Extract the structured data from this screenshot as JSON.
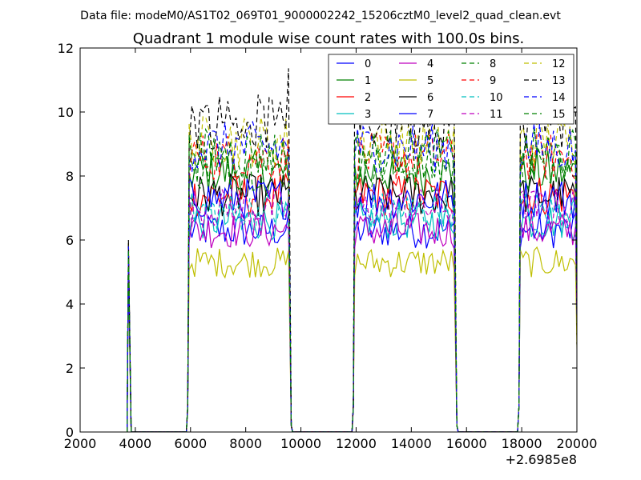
{
  "chart_data": {
    "type": "line",
    "suptitle": "Data file: modeM0/AS1T02_069T01_9000002242_15206cztM0_level2_quad_clean.evt",
    "title": "Quadrant 1 module wise count rates with 100.0s bins.",
    "xlabel": "",
    "ylabel": "",
    "x_offset_label": "+2.6985e8",
    "xlim": [
      2000,
      20000
    ],
    "ylim": [
      0,
      12
    ],
    "xticks": [
      "2000",
      "4000",
      "6000",
      "8000",
      "10000",
      "12000",
      "14000",
      "16000",
      "18000",
      "20000"
    ],
    "yticks": [
      "0",
      "2",
      "4",
      "6",
      "8",
      "10",
      "12"
    ],
    "legend_position": "top-right",
    "segments": [
      {
        "start": 3750,
        "end": 3850
      },
      {
        "start": 5950,
        "end": 9550
      },
      {
        "start": 11950,
        "end": 15550
      },
      {
        "start": 17950,
        "end": 19950
      }
    ],
    "series": [
      {
        "name": "0",
        "color": "#0000ff",
        "dash": "solid",
        "level": 6.3,
        "spike": 5.7
      },
      {
        "name": "1",
        "color": "#008000",
        "dash": "solid",
        "level": 8.1,
        "spike": 5.6
      },
      {
        "name": "2",
        "color": "#ff0000",
        "dash": "solid",
        "level": 7.4,
        "spike": 5.4
      },
      {
        "name": "3",
        "color": "#00bfbf",
        "dash": "solid",
        "level": 6.6,
        "spike": 5.3
      },
      {
        "name": "4",
        "color": "#bf00bf",
        "dash": "solid",
        "level": 6.3,
        "spike": 5.2
      },
      {
        "name": "5",
        "color": "#bfbf00",
        "dash": "solid",
        "level": 5.3,
        "spike": 5.0
      },
      {
        "name": "6",
        "color": "#000000",
        "dash": "solid",
        "level": 7.4,
        "spike": 5.5
      },
      {
        "name": "7",
        "color": "#0000ff",
        "dash": "solid",
        "level": 7.3,
        "spike": 5.4
      },
      {
        "name": "8",
        "color": "#008000",
        "dash": "dashed",
        "level": 8.3,
        "spike": 5.8
      },
      {
        "name": "9",
        "color": "#ff0000",
        "dash": "dashed",
        "level": 8.6,
        "spike": 5.8
      },
      {
        "name": "10",
        "color": "#00bfbf",
        "dash": "dashed",
        "level": 6.9,
        "spike": 5.5
      },
      {
        "name": "11",
        "color": "#bf00bf",
        "dash": "dashed",
        "level": 7.0,
        "spike": 5.4
      },
      {
        "name": "12",
        "color": "#bfbf00",
        "dash": "dashed",
        "level": 9.1,
        "spike": 5.9
      },
      {
        "name": "13",
        "color": "#000000",
        "dash": "dashed",
        "level": 9.7,
        "spike": 6.0
      },
      {
        "name": "14",
        "color": "#0000ff",
        "dash": "dashed",
        "level": 8.9,
        "spike": 5.8
      },
      {
        "name": "15",
        "color": "#008000",
        "dash": "dashed",
        "level": 8.7,
        "spike": 5.7
      }
    ]
  }
}
